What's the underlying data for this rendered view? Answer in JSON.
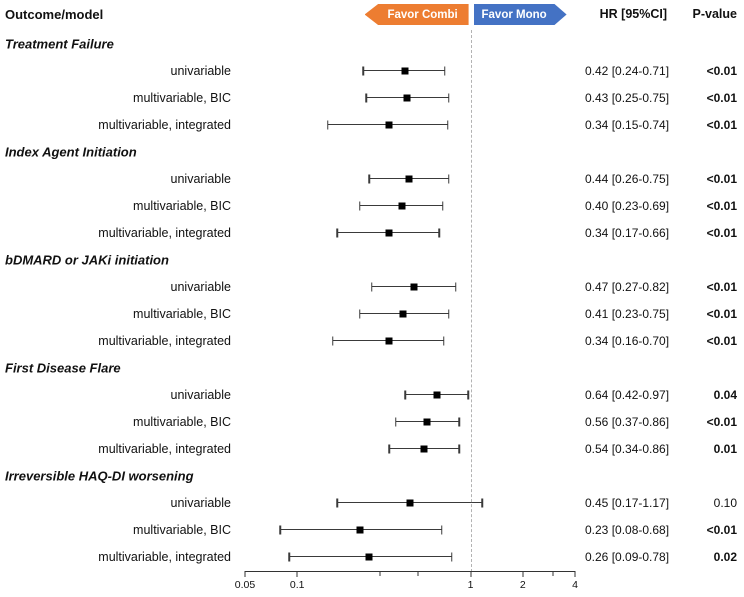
{
  "header": {
    "outcome_label": "Outcome/model",
    "favor_left": "Favor Combi",
    "favor_right": "Favor Mono",
    "hr_label": "HR [95%CI]",
    "p_label": "P-value"
  },
  "colors": {
    "favor_left_bg": "#ED7D31",
    "favor_right_bg": "#4472C4",
    "marker": "#000000",
    "ci_line": "#3a3a3a",
    "ref_line": "#b3b3b3"
  },
  "axis": {
    "scale": "log",
    "min": 0.05,
    "max": 4,
    "labeled_ticks": [
      "0.05",
      "0.1",
      "1",
      "2",
      "4"
    ],
    "labeled_tick_values": [
      0.05,
      0.1,
      1,
      2,
      4
    ],
    "minor_tick_values": [
      0.3,
      0.5,
      3
    ],
    "ref_value": 1
  },
  "chart_data": {
    "type": "forest",
    "title": "",
    "xlabel": "",
    "x_scale": "log",
    "x_range": [
      0.05,
      4
    ],
    "reference_line": 1,
    "groups": [
      {
        "label": "Treatment Failure",
        "rows": [
          {
            "label": "univariable",
            "hr": 0.42,
            "lo": 0.24,
            "hi": 0.71,
            "hr_text": "0.42 [0.24-0.71]",
            "p": "<0.01",
            "p_bold": true
          },
          {
            "label": "multivariable, BIC",
            "hr": 0.43,
            "lo": 0.25,
            "hi": 0.75,
            "hr_text": "0.43 [0.25-0.75]",
            "p": "<0.01",
            "p_bold": true
          },
          {
            "label": "multivariable, integrated",
            "hr": 0.34,
            "lo": 0.15,
            "hi": 0.74,
            "hr_text": "0.34 [0.15-0.74]",
            "p": "<0.01",
            "p_bold": true
          }
        ]
      },
      {
        "label": "Index Agent Initiation",
        "rows": [
          {
            "label": "univariable",
            "hr": 0.44,
            "lo": 0.26,
            "hi": 0.75,
            "hr_text": "0.44 [0.26-0.75]",
            "p": "<0.01",
            "p_bold": true
          },
          {
            "label": "multivariable, BIC",
            "hr": 0.4,
            "lo": 0.23,
            "hi": 0.69,
            "hr_text": "0.40 [0.23-0.69]",
            "p": "<0.01",
            "p_bold": true
          },
          {
            "label": "multivariable, integrated",
            "hr": 0.34,
            "lo": 0.17,
            "hi": 0.66,
            "hr_text": "0.34 [0.17-0.66]",
            "p": "<0.01",
            "p_bold": true
          }
        ]
      },
      {
        "label": "bDMARD or JAKi initiation",
        "rows": [
          {
            "label": "univariable",
            "hr": 0.47,
            "lo": 0.27,
            "hi": 0.82,
            "hr_text": "0.47 [0.27-0.82]",
            "p": "<0.01",
            "p_bold": true
          },
          {
            "label": "multivariable, BIC",
            "hr": 0.41,
            "lo": 0.23,
            "hi": 0.75,
            "hr_text": "0.41 [0.23-0.75]",
            "p": "<0.01",
            "p_bold": true
          },
          {
            "label": "multivariable, integrated",
            "hr": 0.34,
            "lo": 0.16,
            "hi": 0.7,
            "hr_text": "0.34 [0.16-0.70]",
            "p": "<0.01",
            "p_bold": true
          }
        ]
      },
      {
        "label": "First Disease Flare",
        "rows": [
          {
            "label": "univariable",
            "hr": 0.64,
            "lo": 0.42,
            "hi": 0.97,
            "hr_text": "0.64 [0.42-0.97]",
            "p": "0.04",
            "p_bold": true
          },
          {
            "label": "multivariable, BIC",
            "hr": 0.56,
            "lo": 0.37,
            "hi": 0.86,
            "hr_text": "0.56 [0.37-0.86]",
            "p": "<0.01",
            "p_bold": true
          },
          {
            "label": "multivariable, integrated",
            "hr": 0.54,
            "lo": 0.34,
            "hi": 0.86,
            "hr_text": "0.54 [0.34-0.86]",
            "p": "0.01",
            "p_bold": true
          }
        ]
      },
      {
        "label": "Irreversible HAQ-DI worsening",
        "rows": [
          {
            "label": "univariable",
            "hr": 0.45,
            "lo": 0.17,
            "hi": 1.17,
            "hr_text": "0.45 [0.17-1.17]",
            "p": "0.10",
            "p_bold": false
          },
          {
            "label": "multivariable, BIC",
            "hr": 0.23,
            "lo": 0.08,
            "hi": 0.68,
            "hr_text": "0.23 [0.08-0.68]",
            "p": "<0.01",
            "p_bold": true
          },
          {
            "label": "multivariable, integrated",
            "hr": 0.26,
            "lo": 0.09,
            "hi": 0.78,
            "hr_text": "0.26 [0.09-0.78]",
            "p": "0.02",
            "p_bold": true
          }
        ]
      }
    ]
  }
}
